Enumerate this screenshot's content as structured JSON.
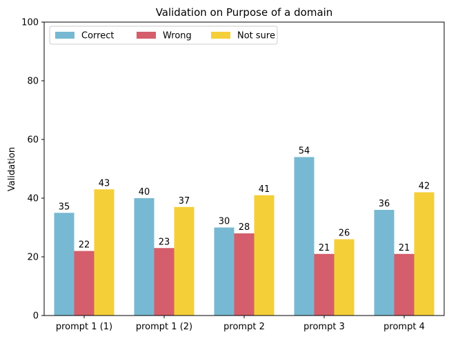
{
  "chart_data": {
    "type": "bar",
    "title": "Validation on Purpose of a domain",
    "xlabel": "",
    "ylabel": "Validation",
    "ylim": [
      0,
      100
    ],
    "yticks": [
      0,
      20,
      40,
      60,
      80,
      100
    ],
    "categories": [
      "prompt 1 (1)",
      "prompt 1 (2)",
      "prompt 2",
      "prompt 3",
      "prompt 4"
    ],
    "series": [
      {
        "name": "Correct",
        "color": "#77b9d2",
        "values": [
          35,
          40,
          30,
          54,
          36
        ]
      },
      {
        "name": "Wrong",
        "color": "#d45e6b",
        "values": [
          22,
          23,
          28,
          21,
          21
        ]
      },
      {
        "name": "Not sure",
        "color": "#f4cf38",
        "values": [
          43,
          37,
          41,
          26,
          42
        ]
      }
    ],
    "legend_position": "top-left",
    "grid": false
  }
}
